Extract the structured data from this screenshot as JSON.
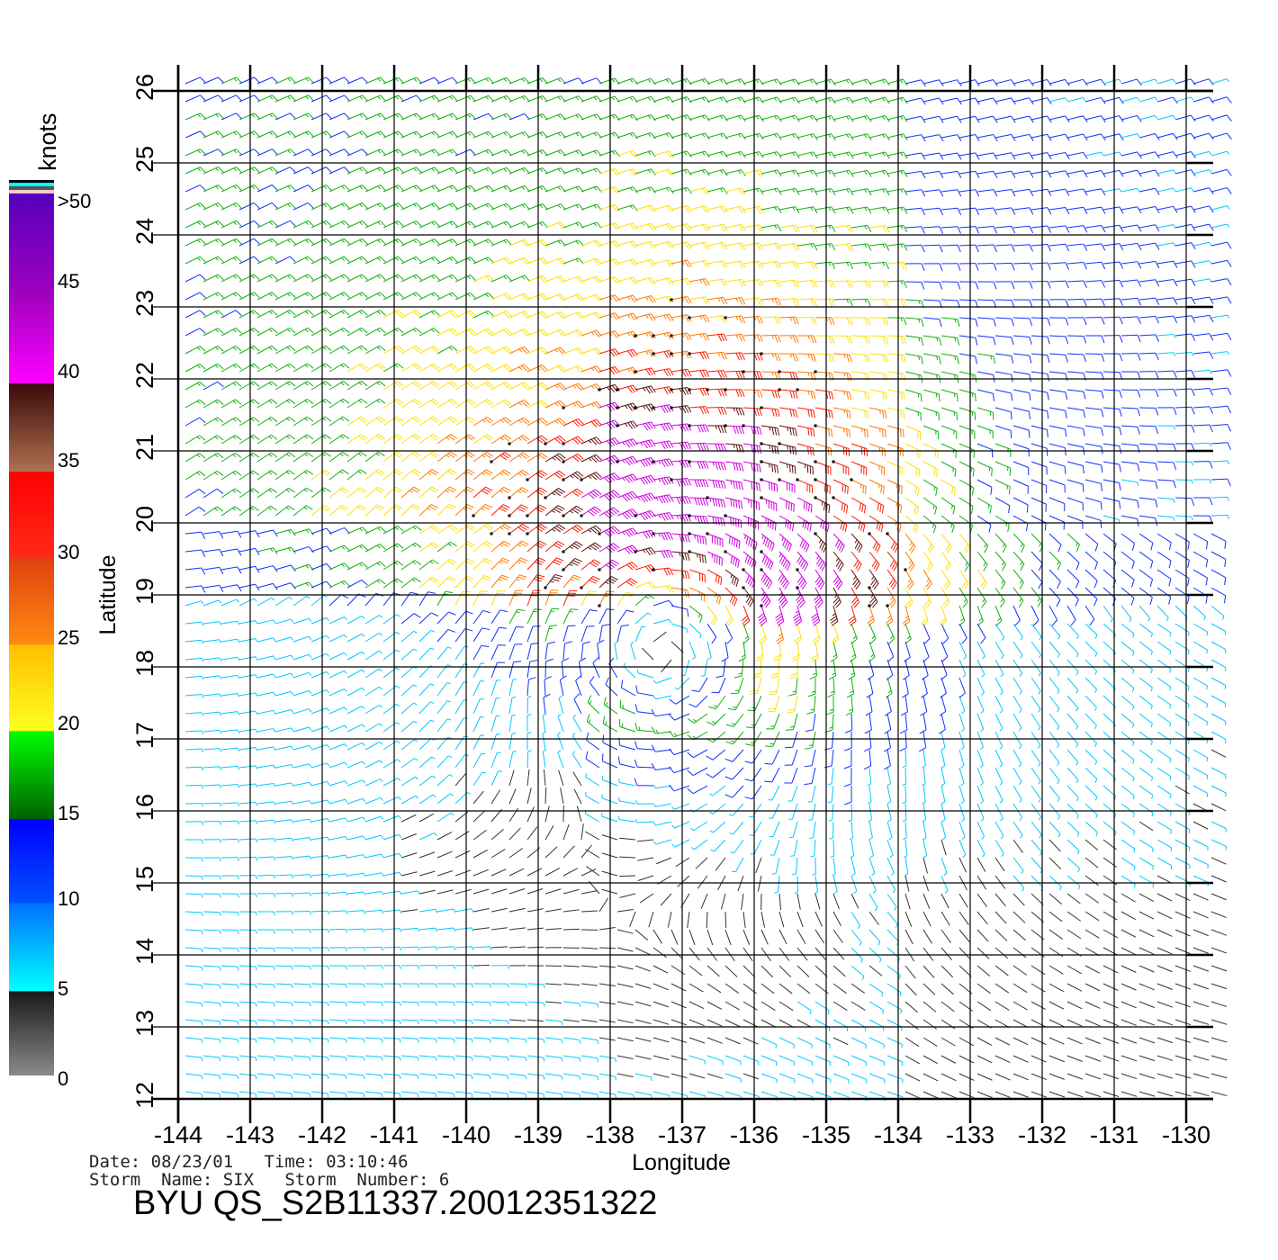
{
  "chart_data": {
    "type": "vector",
    "xlabel": "Longitude",
    "ylabel": "Latitude",
    "xlim": [
      -144,
      -130
    ],
    "ylim": [
      12,
      26
    ],
    "xticks": [
      "-144",
      "-143",
      "-142",
      "-141",
      "-140",
      "-139",
      "-138",
      "-137",
      "-136",
      "-135",
      "-134",
      "-133",
      "-132",
      "-131",
      "-130"
    ],
    "yticks": [
      "12",
      "13",
      "14",
      "15",
      "16",
      "17",
      "18",
      "19",
      "20",
      "21",
      "22",
      "23",
      "24",
      "25",
      "26"
    ],
    "grid": true,
    "colorbar": {
      "unit": "knots",
      "labels": [
        "0",
        "5",
        "10",
        "15",
        "20",
        "25",
        "30",
        "35",
        "40",
        "45",
        ">50"
      ],
      "colors": [
        "#7f7f7f",
        "#00ffff",
        "#0000ff",
        "#006400",
        "#ffff00",
        "#ff8000",
        "#ff0000",
        "#4a0f0f",
        "#ff00ff",
        "#5500bb"
      ]
    },
    "storm_center": {
      "lon": -137.2,
      "lat": 18.7
    },
    "background_wind_knots": 15,
    "max_wind_knots": 45
  },
  "footer": {
    "line1": "Date: 08/23/01   Time: 03:10:46",
    "line2": "Storm  Name: SIX   Storm  Number: 6",
    "title": "BYU  QS_S2B11337.20012351322"
  }
}
